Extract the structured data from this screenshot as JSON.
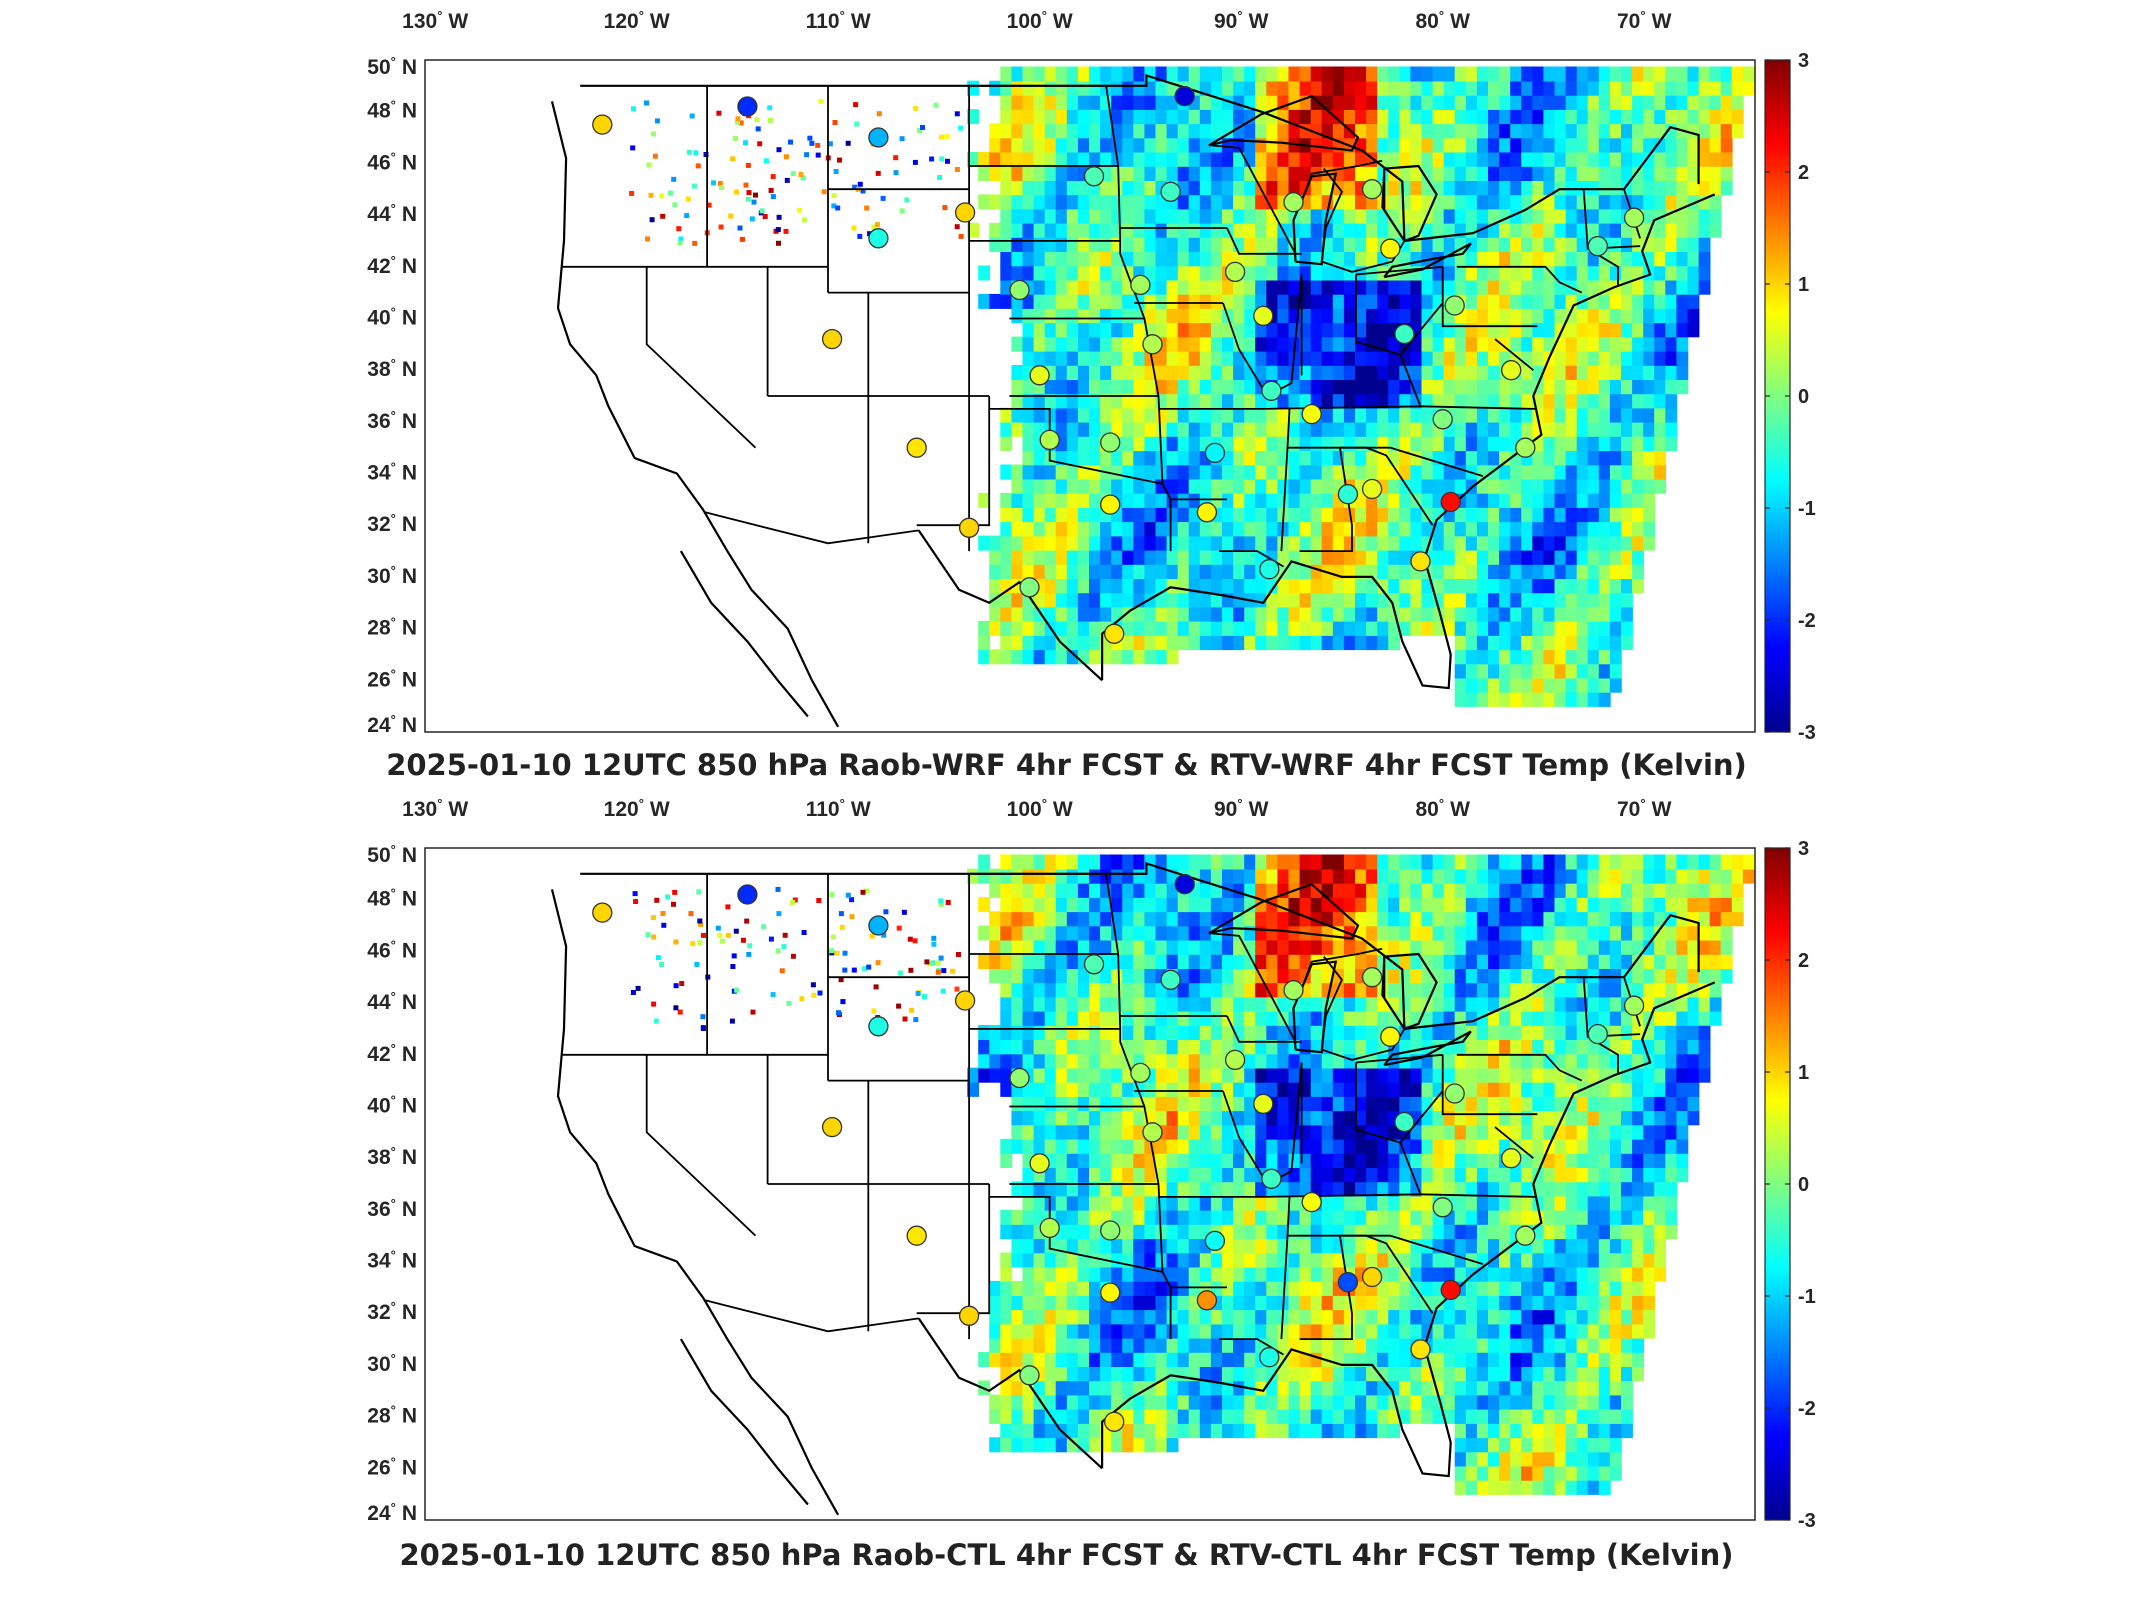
{
  "panels": [
    {
      "title": "2025-01-10 12UTC 850 hPa Raob-WRF 4hr FCST & RTV-WRF 4hr FCST Temp (Kelvin)"
    },
    {
      "title": "2025-01-10 12UTC 850 hPa Raob-CTL 4hr FCST & RTV-CTL 4hr FCST Temp (Kelvin)"
    }
  ],
  "map": {
    "lon_labels": [
      "130",
      "120",
      "110",
      "100",
      "90",
      "80",
      "70"
    ],
    "lon_suffix": "W",
    "lat_labels": [
      "50",
      "48",
      "46",
      "44",
      "42",
      "40",
      "38",
      "36",
      "34",
      "32",
      "30",
      "28",
      "26",
      "24"
    ],
    "lat_suffix": "N",
    "degree_symbol": "°",
    "lon_range": [
      -131,
      -65
    ],
    "lat_range": [
      24,
      50
    ]
  },
  "colorbar": {
    "ticks": [
      "3",
      "2",
      "1",
      "0",
      "-1",
      "-2",
      "-3"
    ],
    "range": [
      -3,
      3
    ],
    "colormap": "jet",
    "colors": [
      "#00008f",
      "#0000ff",
      "#0080ff",
      "#00ffff",
      "#80ff80",
      "#ffff00",
      "#ff8000",
      "#ff0000",
      "#800000"
    ]
  },
  "chart_data": [
    {
      "type": "scatter",
      "title": "2025-01-10 12UTC 850 hPa Raob-WRF 4hr FCST & RTV-WRF 4hr FCST Temp (Kelvin)",
      "xlabel": "",
      "ylabel": "",
      "series": [
        {
          "x": [
            -122.2,
            -115.0,
            -108.5,
            -108.5,
            -106.6,
            -104.2,
            -101.5,
            -100.5,
            -100.0,
            -97.8,
            -97.0,
            -96.8,
            -95.5,
            -94.9,
            -94.0,
            -93.3,
            -92.2,
            -91.8,
            -90.8,
            -89.4,
            -89.1,
            -87.9,
            -87.0,
            -85.2,
            -84.0,
            -84.0,
            -83.1,
            -82.4,
            -81.6,
            -80.5,
            -80.1,
            -79.9,
            -77.1,
            -76.4,
            -72.8,
            -71.0,
            -101.0,
            -97.0,
            -110.8,
            -104.0,
            -89.0
          ],
          "y": [
            47.5,
            48.2,
            47.0,
            43.1,
            35.0,
            44.1,
            41.1,
            37.8,
            35.3,
            45.5,
            32.8,
            27.8,
            41.3,
            39.0,
            44.9,
            48.6,
            32.5,
            34.8,
            41.8,
            40.1,
            30.3,
            44.5,
            36.3,
            33.2,
            33.4,
            45.0,
            42.7,
            39.4,
            30.6,
            36.1,
            32.9,
            40.5,
            38.0,
            35.0,
            42.8,
            43.9,
            29.6,
            35.2,
            39.2,
            31.9,
            37.2
          ],
          "values": [
            1.0,
            -2.0,
            -1.2,
            -0.6,
            0.9,
            1.0,
            0.1,
            0.6,
            0.3,
            -0.3,
            0.8,
            0.9,
            0.2,
            0.3,
            -0.4,
            -2.5,
            0.8,
            -0.8,
            0.3,
            0.6,
            -0.6,
            0.2,
            0.7,
            -0.5,
            0.6,
            0.2,
            0.8,
            -0.4,
            0.9,
            0.0,
            2.2,
            0.1,
            0.6,
            0.2,
            -0.3,
            0.2,
            0.0,
            0.1,
            1.0,
            1.0,
            -0.4
          ]
        }
      ]
    },
    {
      "type": "scatter",
      "title": "2025-01-10 12UTC 850 hPa Raob-CTL 4hr FCST & RTV-CTL 4hr FCST Temp (Kelvin)",
      "xlabel": "",
      "ylabel": "",
      "series": [
        {
          "x": [
            -122.2,
            -115.0,
            -108.5,
            -108.5,
            -106.6,
            -104.2,
            -101.5,
            -100.5,
            -100.0,
            -97.8,
            -97.0,
            -96.8,
            -95.5,
            -94.9,
            -94.0,
            -93.3,
            -92.2,
            -91.8,
            -90.8,
            -89.4,
            -89.1,
            -87.9,
            -87.0,
            -85.2,
            -84.0,
            -84.0,
            -83.1,
            -82.4,
            -81.6,
            -80.5,
            -80.1,
            -79.9,
            -77.1,
            -76.4,
            -72.8,
            -71.0,
            -101.0,
            -97.0,
            -110.8,
            -104.0,
            -89.0
          ],
          "y": [
            47.5,
            48.2,
            47.0,
            43.1,
            35.0,
            44.1,
            41.1,
            37.8,
            35.3,
            45.5,
            32.8,
            27.8,
            41.3,
            39.0,
            44.9,
            48.6,
            32.5,
            34.8,
            41.8,
            40.1,
            30.3,
            44.5,
            36.3,
            33.2,
            33.4,
            45.0,
            42.7,
            39.4,
            30.6,
            36.1,
            32.9,
            40.5,
            38.0,
            35.0,
            42.8,
            43.9,
            29.6,
            35.2,
            39.2,
            31.9,
            37.2
          ],
          "values": [
            1.0,
            -2.0,
            -1.2,
            -0.6,
            0.9,
            1.0,
            0.1,
            0.6,
            0.3,
            -0.3,
            0.8,
            0.9,
            0.2,
            0.3,
            -0.4,
            -2.5,
            1.4,
            -0.7,
            0.3,
            0.6,
            -0.6,
            0.2,
            0.7,
            -1.8,
            1.0,
            0.2,
            0.8,
            -0.4,
            0.9,
            0.0,
            2.2,
            0.1,
            0.6,
            0.2,
            -0.3,
            0.2,
            0.0,
            0.1,
            1.0,
            1.0,
            -0.4
          ]
        }
      ]
    }
  ]
}
